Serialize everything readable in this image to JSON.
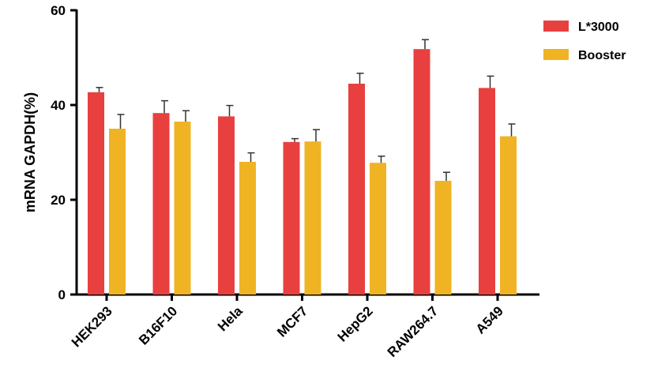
{
  "chart_data": {
    "type": "bar",
    "title": "",
    "xlabel": "",
    "ylabel": "mRNA GAPDH(%)",
    "ylim": [
      0,
      60
    ],
    "yticks": [
      "0",
      "20",
      "40",
      "60"
    ],
    "categories": [
      "HEK293",
      "B16F10",
      "Hela",
      "MCF7",
      "HepG2",
      "RAW264.7",
      "A549"
    ],
    "series": [
      {
        "name": "L*3000",
        "color": "#e8403e",
        "values": [
          42.7,
          38.3,
          37.6,
          32.2,
          44.5,
          51.8,
          43.6
        ],
        "errors": [
          1.0,
          2.6,
          2.3,
          0.7,
          2.2,
          2.0,
          2.5
        ]
      },
      {
        "name": "Booster",
        "color": "#efb323",
        "values": [
          35.0,
          36.5,
          28.0,
          32.3,
          27.8,
          24.0,
          33.4
        ],
        "errors": [
          3.0,
          2.3,
          1.9,
          2.5,
          1.4,
          1.8,
          2.6
        ]
      }
    ],
    "grid": false,
    "legend_position": "top-right"
  }
}
